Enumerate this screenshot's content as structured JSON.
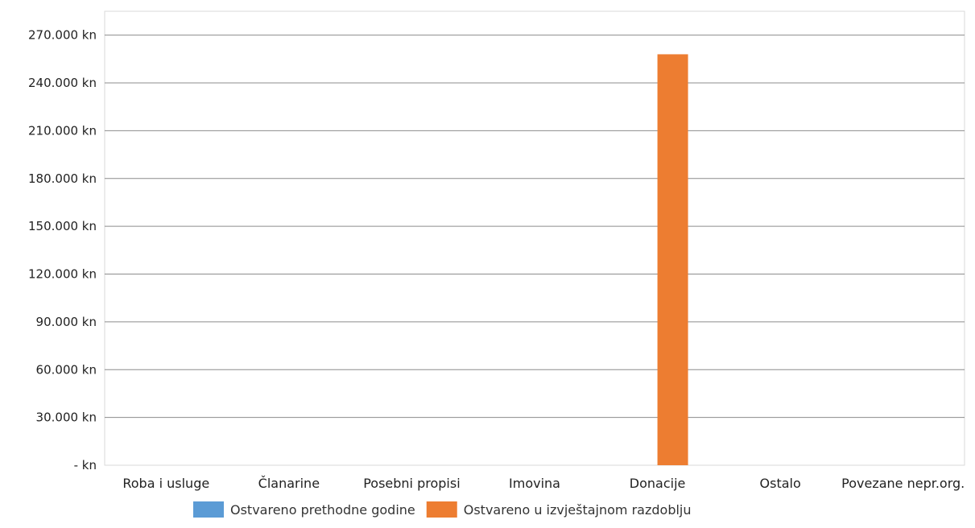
{
  "chart_data": {
    "type": "bar",
    "title": "",
    "xlabel": "",
    "ylabel": "",
    "categories": [
      "Roba i usluge",
      "Članarine",
      "Posebni propisi",
      "Imovina",
      "Donacije",
      "Ostalo",
      "Povezane nepr.org."
    ],
    "series": [
      {
        "name": "Ostvareno prethodne godine",
        "values": [
          0,
          0,
          0,
          0,
          0,
          0,
          0
        ],
        "color": "#5b9bd5"
      },
      {
        "name": "Ostvareno u izvještajnom razdoblju",
        "values": [
          0,
          0,
          0,
          0,
          258000,
          0,
          0
        ],
        "color": "#ed7d31"
      }
    ],
    "ylim": [
      0,
      285000
    ],
    "yticks": [
      0,
      30000,
      60000,
      90000,
      120000,
      150000,
      180000,
      210000,
      240000,
      270000
    ],
    "ytick_labels": [
      "- kn",
      "30.000 kn",
      "60.000 kn",
      "90.000 kn",
      "120.000 kn",
      "150.000 kn",
      "180.000 kn",
      "210.000 kn",
      "240.000 kn",
      "270.000 kn"
    ],
    "grid": true,
    "legend_position": "bottom"
  }
}
